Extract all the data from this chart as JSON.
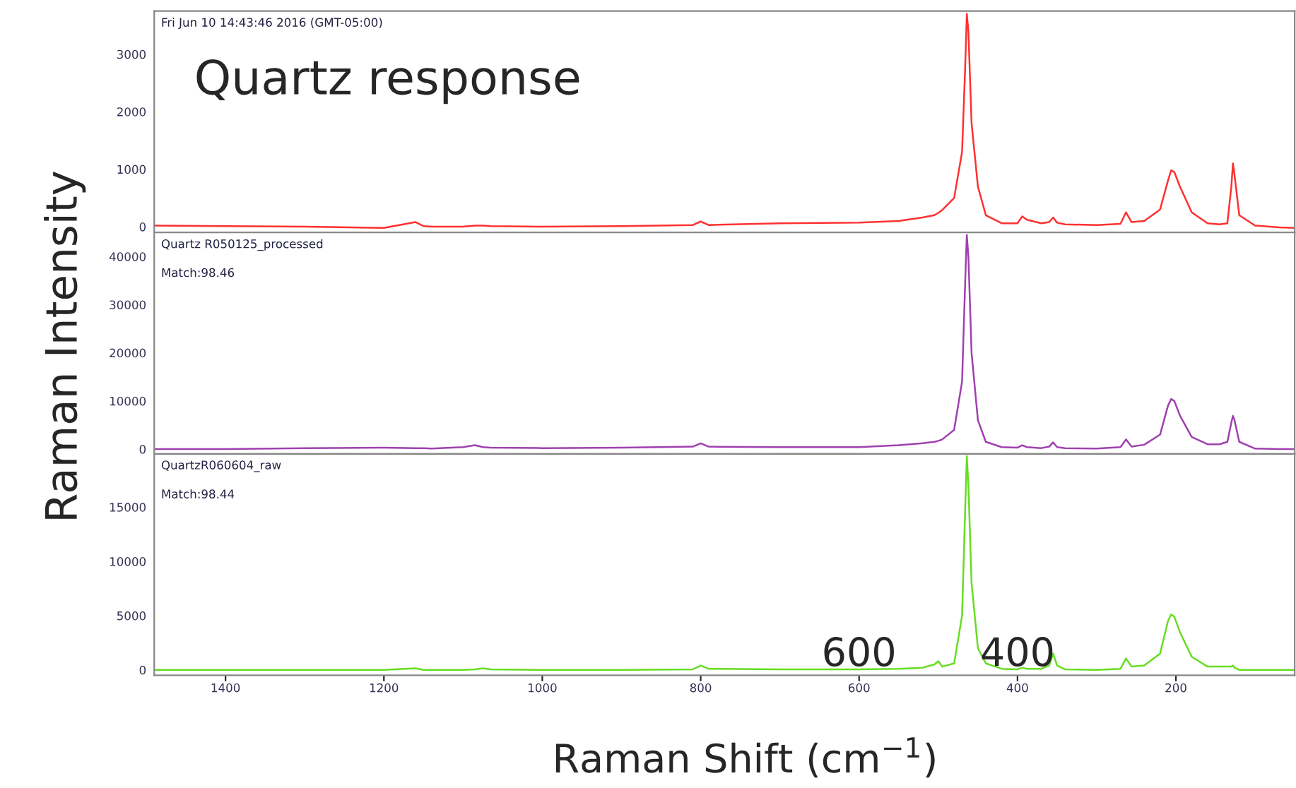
{
  "chart_data": [
    {
      "type": "line",
      "title": "Quartz response",
      "annotations": [
        "Fri Jun 10 14:43:46 2016 (GMT-05:00)"
      ],
      "x": [
        1490,
        1400,
        1300,
        1200,
        1160,
        1150,
        1140,
        1100,
        1085,
        1075,
        1065,
        1000,
        900,
        810,
        800,
        790,
        700,
        600,
        550,
        520,
        505,
        500,
        495,
        480,
        470,
        466,
        464,
        462,
        458,
        450,
        440,
        420,
        400,
        394,
        388,
        370,
        360,
        355,
        350,
        340,
        300,
        270,
        263,
        256,
        240,
        220,
        210,
        206,
        202,
        195,
        180,
        160,
        145,
        135,
        130,
        128,
        126,
        120,
        100,
        70,
        50
      ],
      "series": [
        {
          "color": "#ff3030",
          "values": [
            20,
            10,
            0,
            -20,
            80,
            10,
            0,
            0,
            20,
            20,
            10,
            0,
            10,
            30,
            90,
            30,
            60,
            70,
            100,
            160,
            200,
            240,
            290,
            500,
            1300,
            2800,
            3700,
            3400,
            1800,
            700,
            200,
            60,
            60,
            180,
            120,
            60,
            80,
            160,
            70,
            40,
            30,
            50,
            250,
            80,
            100,
            300,
            800,
            980,
            950,
            700,
            250,
            60,
            40,
            60,
            700,
            1100,
            900,
            200,
            20,
            -10,
            -20
          ]
        }
      ],
      "xlim": [
        1490,
        50
      ],
      "xticks": [
        1400,
        1200,
        1000,
        800,
        600,
        400,
        200
      ],
      "ylim": [
        -100,
        3750
      ],
      "yticks": [
        0,
        1000,
        2000,
        3000
      ],
      "tick_labels": "y"
    },
    {
      "type": "line",
      "ylabel": "Raman Intensity",
      "annotations": [
        "Quartz R050125_processed",
        "Match:98.46"
      ],
      "x": [
        1490,
        1400,
        1300,
        1200,
        1160,
        1150,
        1140,
        1100,
        1085,
        1075,
        1065,
        1000,
        900,
        810,
        800,
        790,
        700,
        600,
        550,
        520,
        505,
        500,
        495,
        480,
        470,
        466,
        464,
        462,
        458,
        450,
        440,
        420,
        400,
        394,
        388,
        370,
        360,
        355,
        350,
        340,
        300,
        270,
        263,
        256,
        240,
        220,
        210,
        206,
        202,
        195,
        180,
        160,
        145,
        135,
        130,
        128,
        126,
        120,
        100,
        70,
        50
      ],
      "series": [
        {
          "color": "#a040b0",
          "values": [
            0,
            0,
            200,
            300,
            200,
            200,
            100,
            400,
            800,
            400,
            300,
            200,
            300,
            500,
            1200,
            500,
            400,
            400,
            800,
            1200,
            1500,
            1700,
            2000,
            4000,
            14000,
            35000,
            44500,
            40000,
            20000,
            6000,
            1500,
            400,
            300,
            800,
            400,
            200,
            500,
            1400,
            400,
            200,
            100,
            400,
            2000,
            500,
            900,
            3000,
            9000,
            10400,
            10000,
            7000,
            2500,
            1000,
            1000,
            1500,
            5500,
            6900,
            6000,
            1500,
            100,
            0,
            0
          ]
        }
      ],
      "xlim": [
        1490,
        50
      ],
      "xticks": [
        1400,
        1200,
        1000,
        800,
        600,
        400,
        200
      ],
      "ylim": [
        -1000,
        45000
      ],
      "yticks": [
        0,
        10000,
        20000,
        30000,
        40000
      ],
      "tick_labels": "y"
    },
    {
      "type": "line",
      "xlabel": "Raman Shift (cm$^{−1}$)",
      "annotations": [
        "QuartzR060604_raw",
        "Match:98.44",
        "600",
        "400"
      ],
      "x": [
        1490,
        1400,
        1300,
        1200,
        1160,
        1150,
        1140,
        1100,
        1085,
        1075,
        1065,
        1000,
        900,
        810,
        800,
        790,
        700,
        600,
        550,
        520,
        505,
        500,
        495,
        480,
        470,
        466,
        464,
        462,
        458,
        450,
        440,
        420,
        400,
        394,
        388,
        370,
        360,
        355,
        350,
        340,
        300,
        270,
        263,
        256,
        240,
        220,
        210,
        206,
        202,
        195,
        180,
        160,
        145,
        135,
        130,
        128,
        126,
        120,
        100,
        70,
        50
      ],
      "series": [
        {
          "color": "#66dd22",
          "values": [
            0,
            0,
            0,
            0,
            150,
            0,
            0,
            0,
            50,
            150,
            50,
            0,
            0,
            50,
            400,
            100,
            50,
            50,
            100,
            200,
            500,
            800,
            300,
            600,
            5000,
            15000,
            19700,
            17000,
            8000,
            2000,
            600,
            100,
            50,
            200,
            100,
            100,
            400,
            1500,
            400,
            50,
            0,
            100,
            1050,
            300,
            400,
            1500,
            4500,
            5100,
            4900,
            3500,
            1200,
            300,
            300,
            300,
            300,
            400,
            200,
            0,
            0,
            0,
            0
          ]
        }
      ],
      "xlim": [
        1490,
        50
      ],
      "xticks": [
        1400,
        1200,
        1000,
        800,
        600,
        400,
        200
      ],
      "ylim": [
        -500,
        19900
      ],
      "yticks": [
        0,
        5000,
        10000,
        15000
      ]
    }
  ]
}
